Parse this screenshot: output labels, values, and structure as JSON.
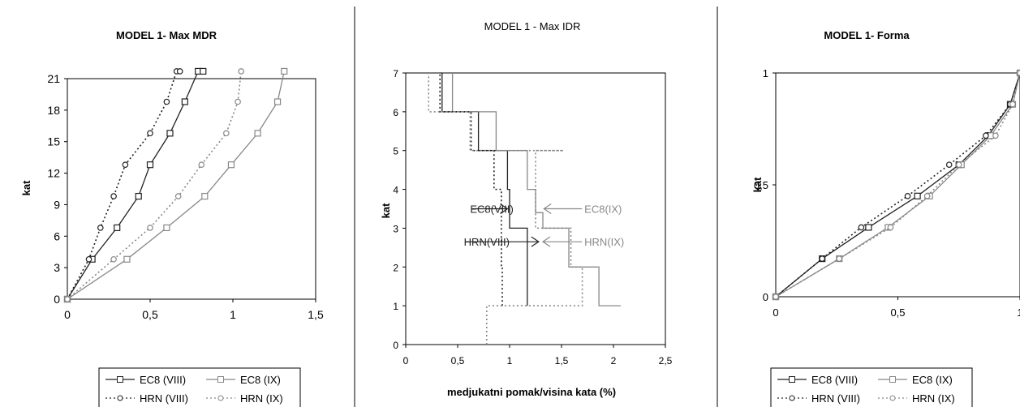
{
  "chart_data": [
    {
      "type": "line",
      "title": "MODEL 1- Max MDR",
      "xlabel": "",
      "ylabel": "kat",
      "xlim": [
        0,
        1.5
      ],
      "ylim": [
        0,
        21
      ],
      "xticks": [
        "0",
        "0,5",
        "1",
        "1,5"
      ],
      "yticks": [
        "0",
        "3",
        "6",
        "9",
        "12",
        "15",
        "18",
        "21"
      ],
      "grid": false,
      "legend_position": "bottom",
      "series": [
        {
          "name": "EC8 (VIII)",
          "style": "solid",
          "marker": "square",
          "color": "#222222",
          "x": [
            0,
            0.15,
            0.3,
            0.43,
            0.5,
            0.62,
            0.71,
            0.79,
            0.82
          ],
          "y": [
            0,
            3.8,
            6.8,
            9.8,
            12.8,
            15.8,
            18.8,
            21.7,
            21.7
          ]
        },
        {
          "name": "EC8 (IX)",
          "style": "solid",
          "marker": "square",
          "color": "#888888",
          "x": [
            0,
            0.36,
            0.6,
            0.83,
            0.99,
            1.15,
            1.27,
            1.31
          ],
          "y": [
            0,
            3.8,
            6.8,
            9.8,
            12.8,
            15.8,
            18.8,
            21.7
          ]
        },
        {
          "name": "HRN (VIII)",
          "style": "dotted",
          "marker": "circle",
          "color": "#222222",
          "x": [
            0,
            0.13,
            0.2,
            0.28,
            0.35,
            0.5,
            0.6,
            0.66,
            0.68
          ],
          "y": [
            0,
            3.8,
            6.8,
            9.8,
            12.8,
            15.8,
            18.8,
            21.7,
            21.7
          ]
        },
        {
          "name": "HRN (IX)",
          "style": "dotted",
          "marker": "circle",
          "color": "#888888",
          "x": [
            0,
            0.28,
            0.5,
            0.67,
            0.81,
            0.96,
            1.03,
            1.05
          ],
          "y": [
            0,
            3.8,
            6.8,
            9.8,
            12.8,
            15.8,
            18.8,
            21.7
          ]
        }
      ]
    },
    {
      "type": "line",
      "title": "MODEL 1 - Max IDR",
      "xlabel": "medjukatni pomak/visina kata (%)",
      "ylabel": "kat",
      "xlim": [
        0,
        2.5
      ],
      "ylim": [
        0,
        7
      ],
      "xticks": [
        "0",
        "0,5",
        "1",
        "1,5",
        "2",
        "2,5"
      ],
      "yticks": [
        "0",
        "1",
        "2",
        "3",
        "4",
        "5",
        "6",
        "7"
      ],
      "grid": false,
      "series": [
        {
          "name": "EC8(VIII)",
          "style": "solid",
          "color": "#222222",
          "x": [
            1.17,
            1.17,
            1.0,
            1.0,
            0.98,
            0.98,
            0.7,
            0.7,
            0.35,
            0.35,
            0.33,
            0.33
          ],
          "y": [
            1,
            3,
            3,
            4,
            4,
            5,
            5,
            6,
            6,
            7,
            7,
            7
          ]
        },
        {
          "name": "EC8(IX)",
          "style": "solid",
          "color": "#888888",
          "x": [
            2.07,
            1.86,
            1.86,
            1.57,
            1.57,
            1.32,
            1.32,
            1.25,
            1.25,
            1.17,
            1.17,
            0.87,
            0.87,
            0.45,
            0.45
          ],
          "y": [
            1,
            1,
            2,
            2,
            3,
            3,
            3.4,
            3.4,
            4,
            4,
            5,
            5,
            6,
            6,
            7
          ]
        },
        {
          "name": "HRN(VIII)",
          "style": "dotted",
          "color": "#222222",
          "x": [
            0.93,
            0.93,
            0.92,
            0.92,
            0.85,
            0.85,
            0.63,
            0.63,
            0.33,
            0.33
          ],
          "y": [
            1,
            2,
            2,
            4,
            4,
            5,
            5,
            6,
            6,
            7
          ]
        },
        {
          "name": "HRN(IX)",
          "style": "dotted",
          "color": "#888888",
          "x": [
            0.78,
            0.78,
            1.7,
            1.7,
            1.59,
            1.59,
            1.25,
            1.25,
            1.52,
            1.52,
            0.62,
            0.62,
            0.22,
            0.22
          ],
          "y": [
            0,
            1,
            1,
            2,
            2,
            3,
            3,
            5,
            5,
            5,
            5,
            6,
            6,
            7
          ]
        }
      ],
      "annotations": [
        {
          "text": "EC8(VIII)",
          "x": 0.62,
          "y": 3.5,
          "arrow_to_x": 0.98,
          "arrow_to_y": 3.5,
          "color": "#222222"
        },
        {
          "text": "EC8(IX)",
          "x": 1.72,
          "y": 3.5,
          "arrow_to_x": 1.33,
          "arrow_to_y": 3.5,
          "color": "#888888"
        },
        {
          "text": "HRN(VIII)",
          "x": 0.56,
          "y": 2.65,
          "arrow_to_x": 1.28,
          "arrow_to_y": 2.65,
          "color": "#222222"
        },
        {
          "text": "HRN(IX)",
          "x": 1.72,
          "y": 2.65,
          "arrow_to_x": 1.32,
          "arrow_to_y": 2.65,
          "color": "#888888"
        }
      ]
    },
    {
      "type": "line",
      "title": "MODEL 1- Forma",
      "xlabel": "",
      "ylabel": "kat",
      "xlim": [
        0,
        1
      ],
      "ylim": [
        0,
        1
      ],
      "xticks": [
        "0",
        "0,5",
        "1"
      ],
      "yticks": [
        "0",
        "0,5",
        "1"
      ],
      "grid": false,
      "legend_position": "bottom",
      "series": [
        {
          "name": "EC8 (VIII)",
          "style": "solid",
          "marker": "square",
          "color": "#222222",
          "x": [
            0,
            0.19,
            0.38,
            0.58,
            0.75,
            0.87,
            0.96,
            1.0
          ],
          "y": [
            0,
            0.17,
            0.31,
            0.45,
            0.59,
            0.72,
            0.86,
            1.0
          ]
        },
        {
          "name": "EC8 (IX)",
          "style": "solid",
          "marker": "square",
          "color": "#888888",
          "x": [
            0,
            0.26,
            0.46,
            0.63,
            0.76,
            0.88,
            0.97,
            1.0
          ],
          "y": [
            0,
            0.17,
            0.31,
            0.45,
            0.59,
            0.72,
            0.86,
            1.0
          ]
        },
        {
          "name": "HRN (VIII)",
          "style": "dotted",
          "marker": "circle",
          "color": "#222222",
          "x": [
            0,
            0.19,
            0.35,
            0.54,
            0.71,
            0.86,
            0.96,
            1.0
          ],
          "y": [
            0,
            0.17,
            0.31,
            0.45,
            0.59,
            0.72,
            0.86,
            1.0
          ]
        },
        {
          "name": "HRN (IX)",
          "style": "dotted",
          "marker": "circle",
          "color": "#888888",
          "x": [
            0,
            0.26,
            0.47,
            0.62,
            0.75,
            0.9,
            0.97,
            1.0
          ],
          "y": [
            0,
            0.17,
            0.31,
            0.45,
            0.59,
            0.72,
            0.86,
            1.0
          ]
        }
      ]
    }
  ]
}
